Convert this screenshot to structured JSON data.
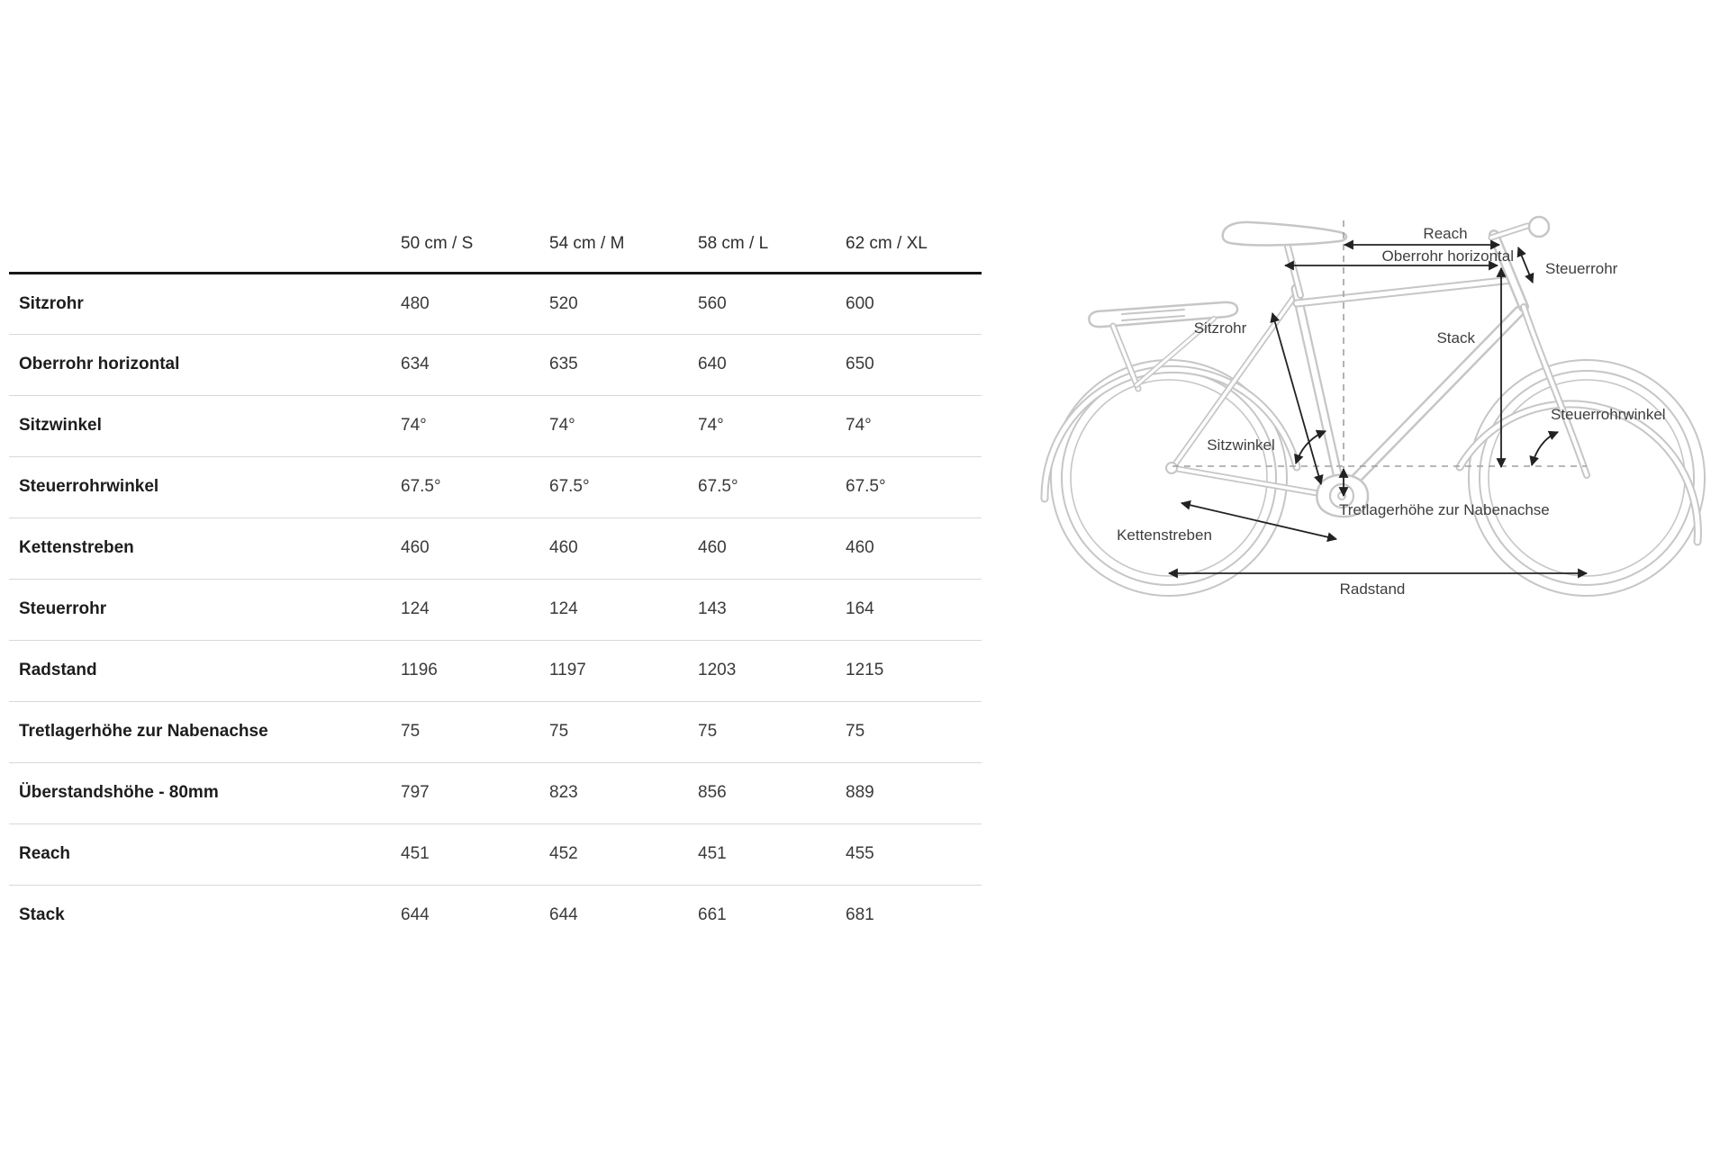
{
  "table": {
    "col_headers": [
      "50 cm / S",
      "54 cm / M",
      "58 cm / L",
      "62 cm / XL"
    ],
    "rows": [
      {
        "label": "Sitzrohr",
        "values": [
          "480",
          "520",
          "560",
          "600"
        ]
      },
      {
        "label": "Oberrohr horizontal",
        "values": [
          "634",
          "635",
          "640",
          "650"
        ]
      },
      {
        "label": "Sitzwinkel",
        "values": [
          "74°",
          "74°",
          "74°",
          "74°"
        ]
      },
      {
        "label": "Steuerrohrwinkel",
        "values": [
          "67.5°",
          "67.5°",
          "67.5°",
          "67.5°"
        ]
      },
      {
        "label": "Kettenstreben",
        "values": [
          "460",
          "460",
          "460",
          "460"
        ]
      },
      {
        "label": "Steuerrohr",
        "values": [
          "124",
          "124",
          "143",
          "164"
        ]
      },
      {
        "label": "Radstand",
        "values": [
          "1196",
          "1197",
          "1203",
          "1215"
        ]
      },
      {
        "label": "Tretlagerhöhe zur Nabenachse",
        "values": [
          "75",
          "75",
          "75",
          "75"
        ]
      },
      {
        "label": "Überstandshöhe - 80mm",
        "values": [
          "797",
          "823",
          "856",
          "889"
        ]
      },
      {
        "label": "Reach",
        "values": [
          "451",
          "452",
          "451",
          "455"
        ]
      },
      {
        "label": "Stack",
        "values": [
          "644",
          "644",
          "661",
          "681"
        ]
      }
    ]
  },
  "diagram": {
    "labels": {
      "reach": "Reach",
      "oberrohr": "Oberrohr horizontal",
      "steuerrohr": "Steuerrohr",
      "sitzrohr": "Sitzrohr",
      "stack": "Stack",
      "steuerrohrwinkel": "Steuerrohrwinkel",
      "sitzwinkel": "Sitzwinkel",
      "tretlager": "Tretlagerhöhe zur Nabenachse",
      "kettenstreben": "Kettenstreben",
      "radstand": "Radstand"
    }
  },
  "colors": {
    "accent_line": "#171717",
    "row_divider": "#d8d8d8",
    "bike_outline": "#c6c6c6",
    "dimension": "#222222",
    "label": "#3e3e3e"
  }
}
